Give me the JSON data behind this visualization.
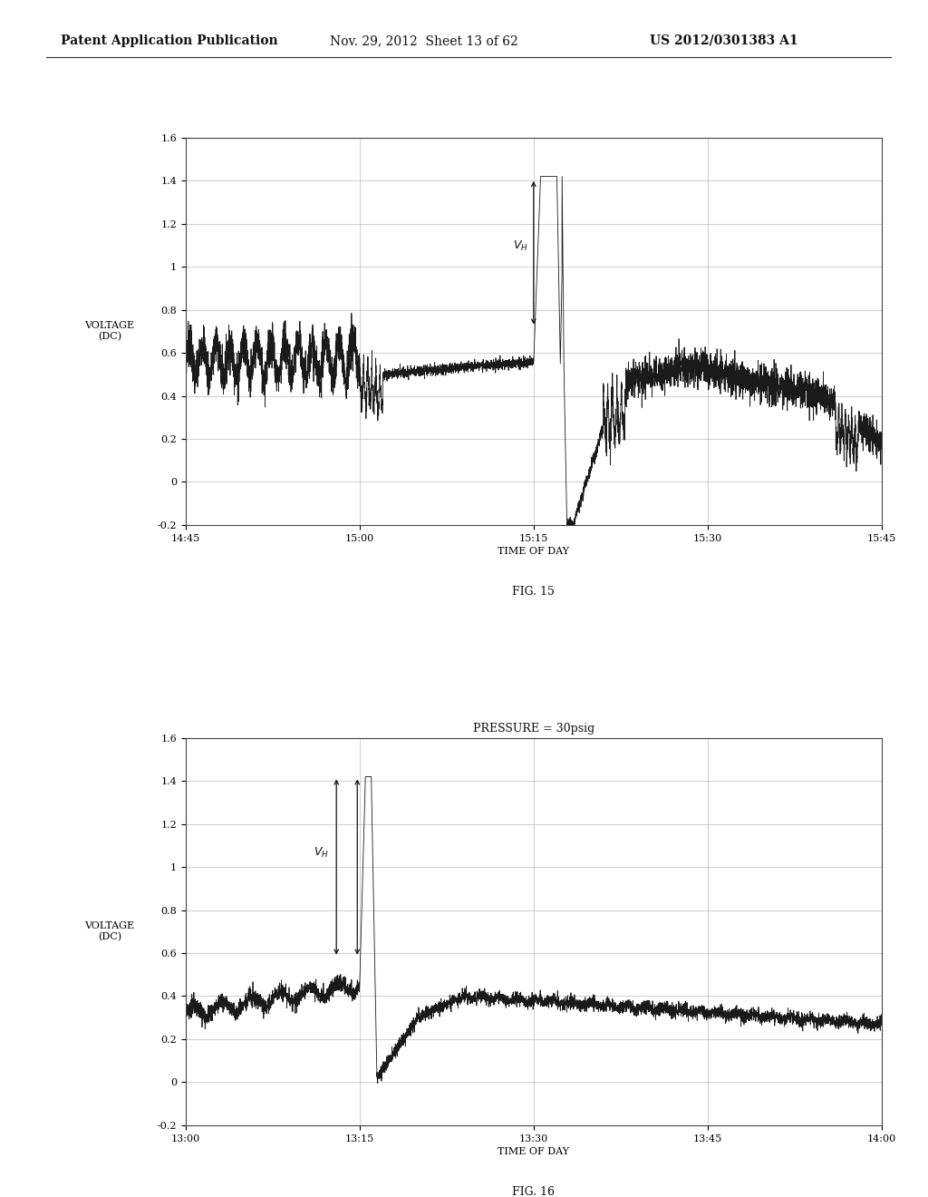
{
  "header_left": "Patent Application Publication",
  "header_mid": "Nov. 29, 2012  Sheet 13 of 62",
  "header_right": "US 2012/0301383 A1",
  "fig15_xlabel": "TIME OF DAY",
  "fig15_ylabel": "VOLTAGE\n(DC)",
  "fig15_caption": "FIG. 15",
  "fig15_xticks": [
    0,
    15,
    30,
    45,
    60
  ],
  "fig15_xticklabels": [
    "14:45",
    "15:00",
    "15:15",
    "15:30",
    "15:45"
  ],
  "fig15_ylim_min": -0.2,
  "fig15_ylim_max": 1.6,
  "fig15_yticks": [
    -0.2,
    0,
    0.2,
    0.4,
    0.6,
    0.8,
    1.0,
    1.2,
    1.4,
    1.6
  ],
  "fig16_title": "PRESSURE = 30psig",
  "fig16_xlabel": "TIME OF DAY",
  "fig16_ylabel": "VOLTAGE\n(DC)",
  "fig16_caption": "FIG. 16",
  "fig16_xticks": [
    0,
    15,
    30,
    45,
    60
  ],
  "fig16_xticklabels": [
    "13:00",
    "13:15",
    "13:30",
    "13:45",
    "14:00"
  ],
  "fig16_ylim_min": -0.2,
  "fig16_ylim_max": 1.6,
  "fig16_yticks": [
    -0.2,
    0,
    0.2,
    0.4,
    0.6,
    0.8,
    1.0,
    1.2,
    1.4,
    1.6
  ],
  "bg_color": "#ffffff",
  "line_color": "#1a1a1a",
  "grid_color": "#888888",
  "text_color": "#111111",
  "font_size_header": 10,
  "font_size_axis": 8,
  "font_size_tick": 8,
  "font_size_caption": 9,
  "font_size_title": 9
}
